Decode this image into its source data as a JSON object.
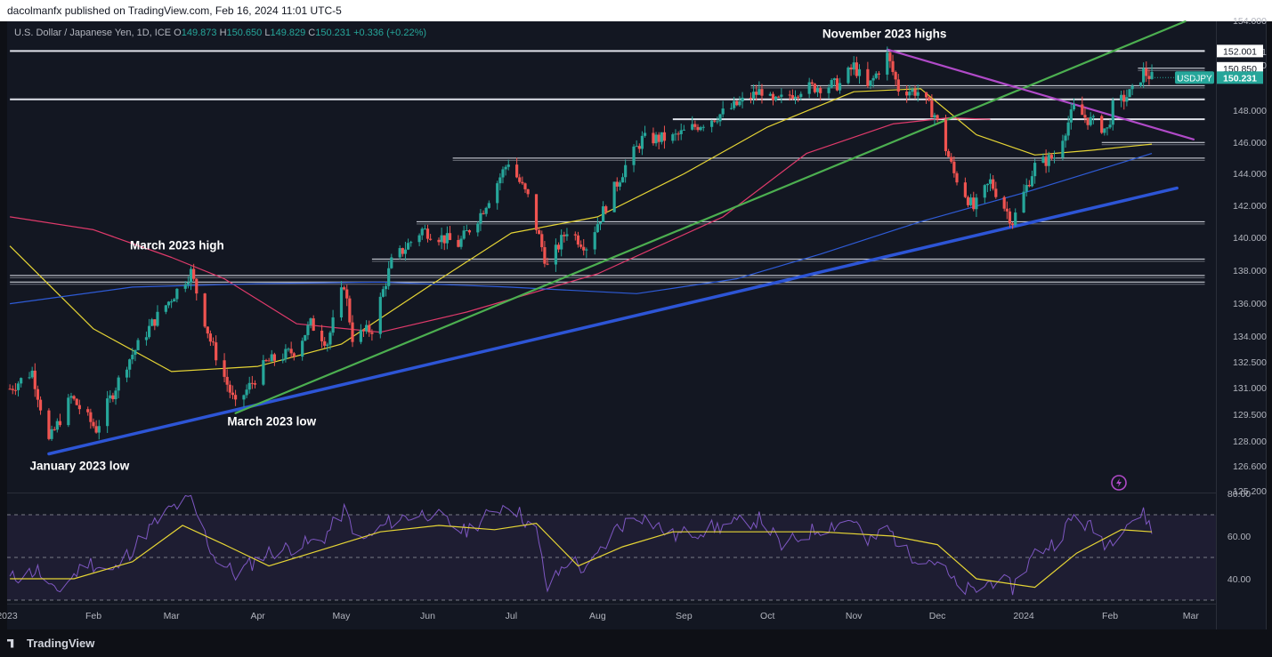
{
  "header": {
    "publisher_line": "dacolmanfx published on TradingView.com, Feb 16, 2024 11:01 UTC-5"
  },
  "legend": {
    "symbol_desc": "U.S. Dollar / Japanese Yen, 1D, ICE",
    "o_label": "O",
    "o_value": "149.873",
    "h_label": "H",
    "h_value": "150.650",
    "l_label": "L",
    "l_value": "149.829",
    "c_label": "C",
    "c_value": "150.231",
    "change": "+0.336 (+0.22%)"
  },
  "footer": {
    "brand": "TradingView"
  },
  "colors": {
    "background": "#131722",
    "up_candle": "#26a69a",
    "down_candle": "#ef5350",
    "ma_fast": "#e6d535",
    "ma_mid": "#e03a6b",
    "ma_slow": "#2e5bd6",
    "rsi": "#7e57c2",
    "trend_blue": "#2d55d6",
    "trend_green": "#4caf50",
    "trend_purple": "#b04ac8"
  },
  "chart_data": [
    {
      "type": "candlestick",
      "title": "U.S. Dollar / Japanese Yen, 1D, ICE",
      "symbol": "USDJPY",
      "last_price": "150.231",
      "price_axis_ticks": [
        "154.000",
        "152.001",
        "150.850",
        "148.000",
        "146.000",
        "144.000",
        "142.000",
        "140.000",
        "138.000",
        "136.000",
        "134.000",
        "132.500",
        "131.000",
        "129.500",
        "128.000",
        "126.600",
        "125.200"
      ],
      "price_badges": [
        {
          "label": "152.001",
          "value": 152.001
        },
        {
          "label": "150.850",
          "value": 150.85
        }
      ],
      "time_axis_ticks": [
        "2023",
        "Feb",
        "Mar",
        "Apr",
        "May",
        "Jun",
        "Jul",
        "Aug",
        "Sep",
        "Oct",
        "Nov",
        "Dec",
        "2024",
        "Feb",
        "Mar"
      ],
      "x_range": [
        "2023-01-01",
        "2024-03-10"
      ],
      "ylim": [
        125.2,
        154.0
      ],
      "y_scale": "log",
      "anchor_points": [
        {
          "date": "2023-01-02",
          "price": 131.0
        },
        {
          "date": "2023-01-10",
          "price": 132.0
        },
        {
          "date": "2023-01-16",
          "price": 128.0
        },
        {
          "date": "2023-01-24",
          "price": 130.5
        },
        {
          "date": "2023-02-02",
          "price": 128.7
        },
        {
          "date": "2023-02-13",
          "price": 132.5
        },
        {
          "date": "2023-02-22",
          "price": 134.8
        },
        {
          "date": "2023-03-08",
          "price": 137.9
        },
        {
          "date": "2023-03-15",
          "price": 133.8
        },
        {
          "date": "2023-03-24",
          "price": 130.0
        },
        {
          "date": "2023-04-04",
          "price": 132.5
        },
        {
          "date": "2023-04-14",
          "price": 133.2
        },
        {
          "date": "2023-04-20",
          "price": 134.8
        },
        {
          "date": "2023-04-26",
          "price": 133.7
        },
        {
          "date": "2023-05-02",
          "price": 137.2
        },
        {
          "date": "2023-05-05",
          "price": 134.0
        },
        {
          "date": "2023-05-12",
          "price": 134.5
        },
        {
          "date": "2023-05-19",
          "price": 138.5
        },
        {
          "date": "2023-05-30",
          "price": 140.5
        },
        {
          "date": "2023-06-12",
          "price": 139.6
        },
        {
          "date": "2023-06-20",
          "price": 141.5
        },
        {
          "date": "2023-06-30",
          "price": 144.8
        },
        {
          "date": "2023-07-07",
          "price": 142.5
        },
        {
          "date": "2023-07-14",
          "price": 138.2
        },
        {
          "date": "2023-07-21",
          "price": 140.5
        },
        {
          "date": "2023-07-28",
          "price": 139.5
        },
        {
          "date": "2023-08-04",
          "price": 142.0
        },
        {
          "date": "2023-08-11",
          "price": 144.5
        },
        {
          "date": "2023-08-17",
          "price": 146.2
        },
        {
          "date": "2023-08-28",
          "price": 146.3
        },
        {
          "date": "2023-09-08",
          "price": 147.3
        },
        {
          "date": "2023-09-15",
          "price": 147.9
        },
        {
          "date": "2023-09-29",
          "price": 149.4
        },
        {
          "date": "2023-10-03",
          "price": 148.5
        },
        {
          "date": "2023-10-13",
          "price": 149.5
        },
        {
          "date": "2023-10-27",
          "price": 149.8
        },
        {
          "date": "2023-11-01",
          "price": 151.0
        },
        {
          "date": "2023-11-06",
          "price": 149.5
        },
        {
          "date": "2023-11-13",
          "price": 151.7
        },
        {
          "date": "2023-11-17",
          "price": 149.5
        },
        {
          "date": "2023-11-24",
          "price": 149.3
        },
        {
          "date": "2023-11-30",
          "price": 147.8
        },
        {
          "date": "2023-12-07",
          "price": 144.0
        },
        {
          "date": "2023-12-14",
          "price": 141.8
        },
        {
          "date": "2023-12-20",
          "price": 143.5
        },
        {
          "date": "2023-12-28",
          "price": 141.0
        },
        {
          "date": "2024-01-05",
          "price": 144.5
        },
        {
          "date": "2024-01-12",
          "price": 145.1
        },
        {
          "date": "2024-01-19",
          "price": 148.2
        },
        {
          "date": "2024-01-24",
          "price": 147.5
        },
        {
          "date": "2024-01-31",
          "price": 146.8
        },
        {
          "date": "2024-02-02",
          "price": 148.3
        },
        {
          "date": "2024-02-09",
          "price": 149.3
        },
        {
          "date": "2024-02-13",
          "price": 150.6
        },
        {
          "date": "2024-02-16",
          "price": 150.23
        }
      ],
      "moving_averages": [
        {
          "kind": "fast",
          "points": [
            [
              "2023-01-02",
              139.5
            ],
            [
              "2023-02-01",
              134.5
            ],
            [
              "2023-03-01",
              132.0
            ],
            [
              "2023-04-01",
              132.3
            ],
            [
              "2023-05-01",
              133.6
            ],
            [
              "2023-06-01",
              137.0
            ],
            [
              "2023-07-01",
              140.3
            ],
            [
              "2023-08-01",
              141.3
            ],
            [
              "2023-09-01",
              144.0
            ],
            [
              "2023-10-01",
              147.0
            ],
            [
              "2023-11-01",
              149.3
            ],
            [
              "2023-11-25",
              149.5
            ],
            [
              "2023-12-15",
              146.5
            ],
            [
              "2024-01-05",
              145.2
            ],
            [
              "2024-01-25",
              145.5
            ],
            [
              "2024-02-16",
              145.9
            ]
          ]
        },
        {
          "kind": "mid",
          "points": [
            [
              "2023-01-02",
              141.3
            ],
            [
              "2023-02-01",
              140.5
            ],
            [
              "2023-03-01",
              138.8
            ],
            [
              "2023-03-20",
              137.5
            ],
            [
              "2023-04-15",
              134.8
            ],
            [
              "2023-05-15",
              134.3
            ],
            [
              "2023-06-15",
              135.5
            ],
            [
              "2023-08-01",
              137.8
            ],
            [
              "2023-09-15",
              141.3
            ],
            [
              "2023-10-15",
              145.3
            ],
            [
              "2023-11-15",
              147.2
            ],
            [
              "2023-12-05",
              147.6
            ],
            [
              "2023-12-20",
              147.5
            ]
          ]
        },
        {
          "kind": "slow",
          "points": [
            [
              "2023-01-02",
              136.0
            ],
            [
              "2023-02-15",
              137.0
            ],
            [
              "2023-04-01",
              137.2
            ],
            [
              "2023-05-15",
              137.3
            ],
            [
              "2023-06-30",
              137.0
            ],
            [
              "2023-08-15",
              136.6
            ],
            [
              "2023-09-20",
              137.5
            ],
            [
              "2023-10-20",
              139.0
            ],
            [
              "2023-11-25",
              141.0
            ],
            [
              "2024-01-01",
              142.8
            ],
            [
              "2024-02-16",
              145.3
            ]
          ]
        }
      ],
      "horizontal_levels": [
        {
          "price": 152.0,
          "from": "2023-01-02",
          "to": "2024-03-06",
          "thick": true
        },
        {
          "price": 149.7,
          "from": "2023-09-25",
          "to": "2024-03-06",
          "thick": false
        },
        {
          "price": 148.8,
          "from": "2023-01-02",
          "to": "2024-03-06",
          "thick": true
        },
        {
          "price": 147.5,
          "from": "2023-08-28",
          "to": "2024-03-06",
          "thick": true
        },
        {
          "price": 146.0,
          "from": "2024-01-29",
          "to": "2024-03-06",
          "thick": false
        },
        {
          "price": 145.0,
          "from": "2023-06-10",
          "to": "2024-03-06",
          "thick": false
        },
        {
          "price": 141.0,
          "from": "2023-05-28",
          "to": "2024-03-06",
          "thick": false
        },
        {
          "price": 138.7,
          "from": "2023-05-12",
          "to": "2024-03-06",
          "thick": false
        },
        {
          "price": 137.7,
          "from": "2023-01-02",
          "to": "2024-03-06",
          "thick": false
        },
        {
          "price": 137.3,
          "from": "2023-01-02",
          "to": "2024-03-06",
          "thick": false
        },
        {
          "price": 150.85,
          "from": "2024-02-11",
          "to": "2024-03-06",
          "thick": false
        }
      ],
      "trend_lines": [
        {
          "kind": "blue",
          "from": [
            "2023-01-16",
            127.3
          ],
          "to": [
            "2024-02-25",
            143.1
          ]
        },
        {
          "kind": "green",
          "from": [
            "2023-03-24",
            129.6
          ],
          "to": [
            "2024-02-28",
            154.0
          ]
        },
        {
          "kind": "purple",
          "from": [
            "2023-11-13",
            152.1
          ],
          "to": [
            "2024-03-02",
            146.2
          ]
        }
      ],
      "annotations": [
        {
          "text": "November 2023 highs",
          "date": "2023-11-12",
          "price": 152.9
        },
        {
          "text": "March 2023 high",
          "date": "2023-03-03",
          "price": 139.3
        },
        {
          "text": "March 2023 low",
          "date": "2023-04-06",
          "price": 128.9
        },
        {
          "text": "January 2023 low",
          "date": "2023-01-27",
          "price": 126.4
        }
      ]
    },
    {
      "type": "line",
      "title": "RSI",
      "y_ticks": [
        "80.00",
        "60.00",
        "40.00"
      ],
      "ylim": [
        30,
        80
      ],
      "band": [
        30,
        70
      ],
      "midline": 50,
      "rsi": [
        [
          "2023-01-02",
          40
        ],
        [
          "2023-01-12",
          44
        ],
        [
          "2023-01-18",
          33
        ],
        [
          "2023-01-30",
          48
        ],
        [
          "2023-02-08",
          43
        ],
        [
          "2023-02-20",
          62
        ],
        [
          "2023-03-01",
          73
        ],
        [
          "2023-03-08",
          77
        ],
        [
          "2023-03-16",
          51
        ],
        [
          "2023-03-24",
          42
        ],
        [
          "2023-04-04",
          52
        ],
        [
          "2023-04-14",
          55
        ],
        [
          "2023-04-24",
          58
        ],
        [
          "2023-05-02",
          72
        ],
        [
          "2023-05-08",
          57
        ],
        [
          "2023-05-20",
          68
        ],
        [
          "2023-06-02",
          71
        ],
        [
          "2023-06-14",
          62
        ],
        [
          "2023-06-30",
          76
        ],
        [
          "2023-07-10",
          62
        ],
        [
          "2023-07-14",
          35
        ],
        [
          "2023-07-22",
          50
        ],
        [
          "2023-07-28",
          43
        ],
        [
          "2023-08-08",
          64
        ],
        [
          "2023-08-16",
          70
        ],
        [
          "2023-08-28",
          60
        ],
        [
          "2023-09-12",
          64
        ],
        [
          "2023-09-29",
          68
        ],
        [
          "2023-10-06",
          55
        ],
        [
          "2023-10-18",
          63
        ],
        [
          "2023-11-01",
          68
        ],
        [
          "2023-11-06",
          56
        ],
        [
          "2023-11-13",
          64
        ],
        [
          "2023-11-20",
          52
        ],
        [
          "2023-12-01",
          48
        ],
        [
          "2023-12-08",
          36
        ],
        [
          "2023-12-14",
          34
        ],
        [
          "2023-12-22",
          40
        ],
        [
          "2023-12-28",
          36
        ],
        [
          "2024-01-05",
          52
        ],
        [
          "2024-01-12",
          57
        ],
        [
          "2024-01-19",
          69
        ],
        [
          "2024-01-26",
          63
        ],
        [
          "2024-01-31",
          56
        ],
        [
          "2024-02-06",
          66
        ],
        [
          "2024-02-13",
          70
        ],
        [
          "2024-02-16",
          64
        ]
      ],
      "rsi_ma": [
        [
          "2023-01-02",
          40
        ],
        [
          "2023-01-25",
          40
        ],
        [
          "2023-02-15",
          48
        ],
        [
          "2023-03-05",
          65
        ],
        [
          "2023-03-20",
          56
        ],
        [
          "2023-04-05",
          46
        ],
        [
          "2023-04-25",
          54
        ],
        [
          "2023-05-15",
          62
        ],
        [
          "2023-06-05",
          65
        ],
        [
          "2023-06-25",
          63
        ],
        [
          "2023-07-10",
          66
        ],
        [
          "2023-07-25",
          46
        ],
        [
          "2023-08-10",
          55
        ],
        [
          "2023-08-28",
          62
        ],
        [
          "2023-09-20",
          62
        ],
        [
          "2023-10-20",
          62
        ],
        [
          "2023-11-15",
          60
        ],
        [
          "2023-12-01",
          56
        ],
        [
          "2023-12-15",
          40
        ],
        [
          "2024-01-05",
          36
        ],
        [
          "2024-01-20",
          52
        ],
        [
          "2024-02-05",
          63
        ],
        [
          "2024-02-16",
          62
        ]
      ]
    }
  ]
}
